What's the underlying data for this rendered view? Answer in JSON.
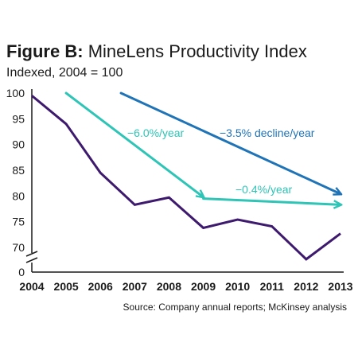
{
  "title_prefix": "Figure B:",
  "title_main": "MineLens Productivity Index",
  "subtitle": "Indexed, 2004 = 100",
  "source": "Source: Company annual reports; McKinsey analysis",
  "colors": {
    "series": "#3d1a6e",
    "teal": "#2ec4b6",
    "blue": "#1f73b7",
    "axis": "#1a1a1a"
  },
  "chart_data": {
    "type": "line",
    "title": "MineLens Productivity Index",
    "subtitle": "Indexed, 2004 = 100",
    "xlabel": "",
    "ylabel": "",
    "x": [
      2004,
      2005,
      2006,
      2007,
      2008,
      2009,
      2010,
      2011,
      2012,
      2013
    ],
    "ytick_labels": [
      "0",
      "70",
      "75",
      "80",
      "85",
      "90",
      "95",
      "100"
    ],
    "ylim": [
      67,
      100
    ],
    "axis_break": "between 0 and 70",
    "series": [
      {
        "name": "",
        "values": [
          99.5,
          94.0,
          84.5,
          78.3,
          79.7,
          73.8,
          75.4,
          74.1,
          67.7,
          72.7
        ]
      }
    ],
    "trend_arrows": [
      {
        "label": "−6.0%/year",
        "x_start": 2005,
        "y_start": 100.0,
        "x_end": 2009,
        "y_end": 79.8,
        "color": "teal"
      },
      {
        "label": "−0.4%/year",
        "x_start": 2009,
        "y_start": 79.5,
        "x_end": 2013,
        "y_end": 78.3,
        "color": "teal"
      },
      {
        "label": "−3.5% decline/year",
        "x_start": 2006.6,
        "y_start": 100.0,
        "x_end": 2013,
        "y_end": 80.4,
        "color": "blue"
      }
    ]
  }
}
